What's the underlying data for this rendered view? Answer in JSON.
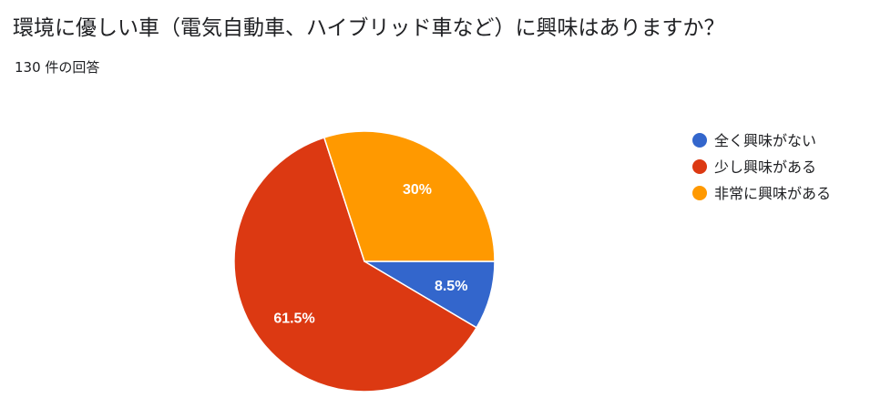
{
  "header": {
    "question": "環境に優しい車（電気自動車、ハイブリッド車など）に興味はありますか？",
    "response_count": "130 件の回答"
  },
  "chart_data": {
    "type": "pie",
    "title": "",
    "start_angle_deg": 0,
    "direction": "clockwise",
    "slices": [
      {
        "label": "全く興味がない",
        "value": 8.5,
        "display": "8.5%",
        "color": "#3366cc"
      },
      {
        "label": "少し興味がある",
        "value": 61.5,
        "display": "61.5%",
        "color": "#dc3912"
      },
      {
        "label": "非常に興味がある",
        "value": 30,
        "display": "30%",
        "color": "#ff9900"
      }
    ],
    "legend": {
      "placement": "right"
    }
  }
}
